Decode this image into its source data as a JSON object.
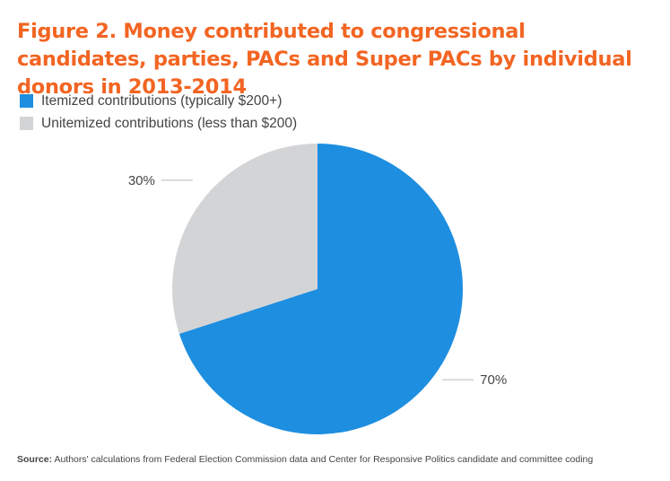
{
  "header": {
    "title": "Figure 2. Money contributed to congressional candidates, parties, PACs and Super PACs by individual donors in 2013-2014"
  },
  "chart_data": {
    "type": "pie",
    "title": "Figure 2. Money contributed to congressional candidates, parties, PACs and Super PACs by individual donors in 2013-2014",
    "legend_placement": "top-left",
    "slices": [
      {
        "name": "Itemized contributions (typically $200+)",
        "value": 70,
        "label": "70%",
        "color": "#1e8ee0"
      },
      {
        "name": "Unitemized contributions (less than $200)",
        "value": 30,
        "label": "30%",
        "color": "#d3d4d6"
      }
    ]
  },
  "footer": {
    "source_label": "Source:",
    "source_text": "Authors' calculations from Federal Election Commission data and Center for Responsive Politics candidate and committee coding"
  }
}
